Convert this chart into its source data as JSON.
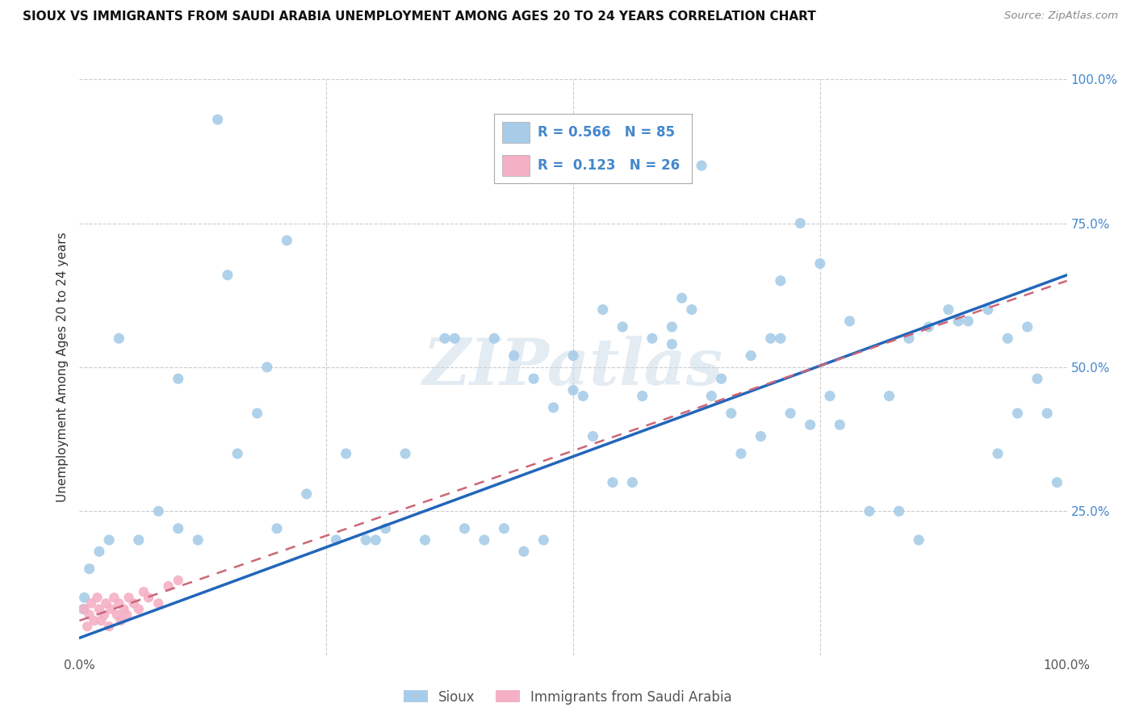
{
  "title": "SIOUX VS IMMIGRANTS FROM SAUDI ARABIA UNEMPLOYMENT AMONG AGES 20 TO 24 YEARS CORRELATION CHART",
  "source": "Source: ZipAtlas.com",
  "ylabel": "Unemployment Among Ages 20 to 24 years",
  "legend_label1": "Sioux",
  "legend_label2": "Immigrants from Saudi Arabia",
  "R1": "0.566",
  "N1": "85",
  "R2": "0.123",
  "N2": "26",
  "color_sioux": "#a8cce8",
  "color_saudi": "#f4b0c4",
  "color_line_sioux": "#2266bb",
  "color_line_saudi": "#cc6677",
  "background": "#ffffff",
  "grid_color": "#cccccc",
  "xmin": 0.0,
  "xmax": 1.0,
  "ymin": 0.0,
  "ymax": 1.0,
  "watermark": "ZIPatlas",
  "sioux_line_x0": 0.0,
  "sioux_line_y0": 0.03,
  "sioux_line_x1": 1.0,
  "sioux_line_y1": 0.66,
  "saudi_line_x0": 0.0,
  "saudi_line_y0": 0.06,
  "saudi_line_x1": 1.0,
  "saudi_line_y1": 0.65,
  "sioux_x": [
    0.14,
    0.04,
    0.21,
    0.19,
    0.06,
    0.08,
    0.1,
    0.12,
    0.16,
    0.18,
    0.23,
    0.27,
    0.31,
    0.29,
    0.26,
    0.35,
    0.38,
    0.42,
    0.44,
    0.46,
    0.48,
    0.51,
    0.53,
    0.55,
    0.58,
    0.6,
    0.62,
    0.64,
    0.66,
    0.68,
    0.7,
    0.72,
    0.74,
    0.76,
    0.78,
    0.82,
    0.84,
    0.86,
    0.88,
    0.9,
    0.92,
    0.94,
    0.96,
    0.98,
    0.99,
    0.97,
    0.95,
    0.93,
    0.85,
    0.83,
    0.8,
    0.77,
    0.75,
    0.73,
    0.71,
    0.69,
    0.67,
    0.65,
    0.63,
    0.61,
    0.57,
    0.56,
    0.54,
    0.52,
    0.5,
    0.47,
    0.45,
    0.43,
    0.41,
    0.39,
    0.37,
    0.33,
    0.3,
    0.2,
    0.15,
    0.1,
    0.03,
    0.02,
    0.01,
    0.005,
    0.004,
    0.5,
    0.6,
    0.71,
    0.89
  ],
  "sioux_y": [
    0.93,
    0.55,
    0.72,
    0.5,
    0.2,
    0.25,
    0.22,
    0.2,
    0.35,
    0.42,
    0.28,
    0.35,
    0.22,
    0.2,
    0.2,
    0.2,
    0.55,
    0.55,
    0.52,
    0.48,
    0.43,
    0.45,
    0.6,
    0.57,
    0.55,
    0.57,
    0.6,
    0.45,
    0.42,
    0.52,
    0.55,
    0.42,
    0.4,
    0.45,
    0.58,
    0.45,
    0.55,
    0.57,
    0.6,
    0.58,
    0.6,
    0.55,
    0.57,
    0.42,
    0.3,
    0.48,
    0.42,
    0.35,
    0.2,
    0.25,
    0.25,
    0.4,
    0.68,
    0.75,
    0.65,
    0.38,
    0.35,
    0.48,
    0.85,
    0.62,
    0.45,
    0.3,
    0.3,
    0.38,
    0.52,
    0.2,
    0.18,
    0.22,
    0.2,
    0.22,
    0.55,
    0.35,
    0.2,
    0.22,
    0.66,
    0.48,
    0.2,
    0.18,
    0.15,
    0.1,
    0.08,
    0.46,
    0.54,
    0.55,
    0.58
  ],
  "saudi_x": [
    0.005,
    0.008,
    0.01,
    0.012,
    0.015,
    0.018,
    0.02,
    0.022,
    0.025,
    0.027,
    0.03,
    0.032,
    0.035,
    0.038,
    0.04,
    0.042,
    0.045,
    0.048,
    0.05,
    0.055,
    0.06,
    0.065,
    0.07,
    0.08,
    0.09,
    0.1
  ],
  "saudi_y": [
    0.08,
    0.05,
    0.07,
    0.09,
    0.06,
    0.1,
    0.08,
    0.06,
    0.07,
    0.09,
    0.05,
    0.08,
    0.1,
    0.07,
    0.09,
    0.06,
    0.08,
    0.07,
    0.1,
    0.09,
    0.08,
    0.11,
    0.1,
    0.09,
    0.12,
    0.13
  ]
}
